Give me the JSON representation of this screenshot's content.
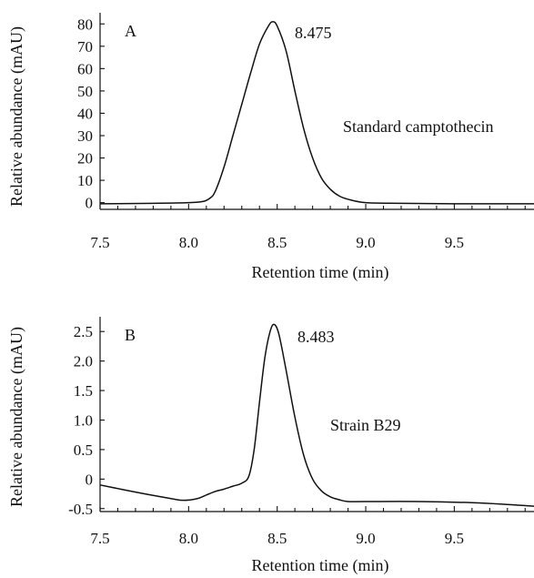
{
  "chart_data": [
    {
      "type": "line",
      "panel_label": "A",
      "xlabel": "Retention time (min)",
      "ylabel": "Relative abundance (mAU)",
      "xlim": [
        7.5,
        9.95
      ],
      "ylim": [
        -3,
        85
      ],
      "x_ticks": [
        7.5,
        8.0,
        8.5,
        9.0,
        9.5
      ],
      "x_tick_labels": [
        "7.5",
        "8.0",
        "8.5",
        "9.0",
        "9.5"
      ],
      "y_ticks": [
        0,
        10,
        20,
        30,
        40,
        50,
        60,
        70,
        80
      ],
      "y_tick_labels": [
        "0",
        "10",
        "20",
        "30",
        "40",
        "50",
        "60",
        "70",
        "80"
      ],
      "x_minor_step": 0.1,
      "peak_label": "8.475",
      "peak": {
        "x": 8.475,
        "y": 81
      },
      "series_label": "Standard camptothecin",
      "series": [
        {
          "x": [
            7.5,
            7.8,
            8.0,
            8.08,
            8.12,
            8.15,
            8.2,
            8.25,
            8.3,
            8.35,
            8.4,
            8.45,
            8.475,
            8.5,
            8.55,
            8.6,
            8.65,
            8.7,
            8.75,
            8.8,
            8.85,
            8.9,
            9.0,
            9.2,
            9.5,
            9.95
          ],
          "y": [
            -0.5,
            -0.3,
            0.0,
            0.5,
            2.0,
            5.0,
            16.0,
            30.0,
            44.0,
            58.0,
            71.0,
            79.0,
            81.0,
            79.0,
            68.0,
            50.0,
            33.0,
            20.0,
            11.0,
            6.0,
            3.0,
            1.5,
            0.0,
            -0.3,
            -0.5,
            -0.5
          ]
        }
      ]
    },
    {
      "type": "line",
      "panel_label": "B",
      "xlabel": "Retention time (min)",
      "ylabel": "Relative abundance (mAU)",
      "xlim": [
        7.5,
        9.95
      ],
      "ylim": [
        -0.55,
        2.75
      ],
      "x_ticks": [
        7.5,
        8.0,
        8.5,
        9.0,
        9.5
      ],
      "x_tick_labels": [
        "7.5",
        "8.0",
        "8.5",
        "9.0",
        "9.5"
      ],
      "y_ticks": [
        -0.5,
        0,
        0.5,
        1.0,
        1.5,
        2.0,
        2.5
      ],
      "y_tick_labels": [
        "-0.5",
        "0",
        "0.5",
        "1.0",
        "1.5",
        "2.0",
        "2.5"
      ],
      "x_minor_step": 0.1,
      "peak_label": "8.483",
      "peak": {
        "x": 8.483,
        "y": 2.62
      },
      "series_label": "Strain B29",
      "series": [
        {
          "x": [
            7.5,
            7.7,
            7.9,
            7.97,
            8.05,
            8.1,
            8.15,
            8.2,
            8.25,
            8.3,
            8.34,
            8.37,
            8.4,
            8.43,
            8.46,
            8.483,
            8.51,
            8.55,
            8.6,
            8.65,
            8.7,
            8.75,
            8.8,
            8.85,
            8.9,
            9.0,
            9.3,
            9.6,
            9.8,
            9.95
          ],
          "y": [
            -0.1,
            -0.22,
            -0.33,
            -0.36,
            -0.33,
            -0.27,
            -0.21,
            -0.17,
            -0.12,
            -0.07,
            0.05,
            0.5,
            1.3,
            2.05,
            2.5,
            2.62,
            2.45,
            1.85,
            1.05,
            0.4,
            0.0,
            -0.2,
            -0.3,
            -0.35,
            -0.38,
            -0.38,
            -0.38,
            -0.4,
            -0.43,
            -0.46
          ]
        }
      ]
    }
  ]
}
